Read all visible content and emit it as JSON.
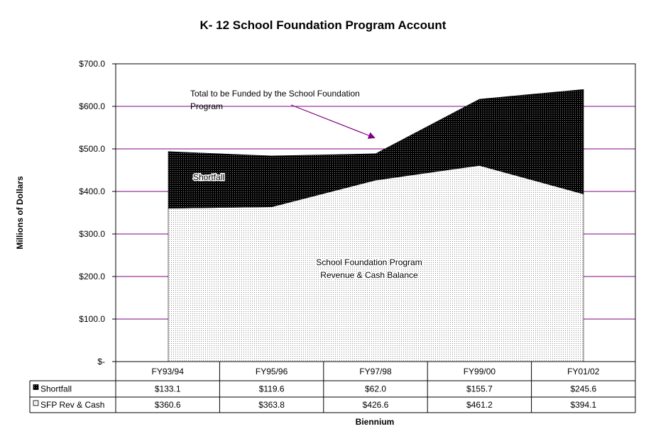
{
  "chart_data": {
    "type": "area",
    "stacked": true,
    "title": "K- 12 School Foundation Program Account",
    "xlabel": "Biennium",
    "ylabel": "Millions of Dollars",
    "categories": [
      "FY93/94",
      "FY95/96",
      "FY97/98",
      "FY99/00",
      "FY01/02"
    ],
    "ylim": [
      0,
      700
    ],
    "yticks": [
      {
        "value": 700,
        "label": "$700.0"
      },
      {
        "value": 600,
        "label": "$600.0"
      },
      {
        "value": 500,
        "label": "$500.0"
      },
      {
        "value": 400,
        "label": "$400.0"
      },
      {
        "value": 300,
        "label": "$300.0"
      },
      {
        "value": 200,
        "label": "$200.0"
      },
      {
        "value": 100,
        "label": "$100.0"
      },
      {
        "value": 0,
        "label": "$-"
      }
    ],
    "series": [
      {
        "name": "SFP Rev & Cash",
        "values": [
          360.6,
          363.8,
          426.6,
          461.2,
          394.1
        ],
        "labels": [
          "$360.6",
          "$363.8",
          "$426.6",
          "$461.2",
          "$394.1"
        ]
      },
      {
        "name": "Shortfall",
        "values": [
          133.1,
          119.6,
          62.0,
          155.7,
          245.6
        ],
        "labels": [
          "$133.1",
          "$119.6",
          "$62.0",
          "$155.7",
          "$245.6"
        ]
      }
    ],
    "annotations": {
      "shortfall": "Shortfall",
      "total_line1": "Total to be Funded by the School Foundation",
      "total_line2": "Program",
      "revenue_line1": "School Foundation Program",
      "revenue_line2": "Revenue  & Cash Balance"
    },
    "grid": true,
    "legend": "data-table"
  },
  "colors": {
    "gridline": "#800080",
    "arrow": "#800080",
    "shortfall_fill": "#111111",
    "revenue_fill": "#f2f2f2",
    "border": "#000000"
  }
}
